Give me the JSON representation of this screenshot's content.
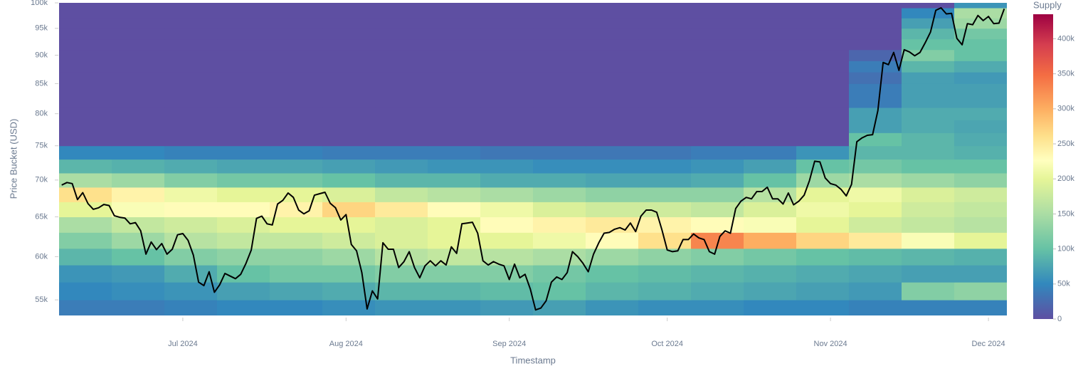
{
  "chart_data": {
    "type": "heatmap",
    "xlabel": "Timestamp",
    "ylabel": "Price Bucket (USD)",
    "colorbar_title": "Supply",
    "log_y": true,
    "xlim": [
      158.5,
      338.5
    ],
    "ylim": [
      53300,
      100000
    ],
    "zlim": [
      0,
      435000
    ],
    "xticks": [
      {
        "value": 182,
        "label": "Jul 2024"
      },
      {
        "value": 213,
        "label": "Aug 2024"
      },
      {
        "value": 244,
        "label": "Sep 2024"
      },
      {
        "value": 274,
        "label": "Oct 2024"
      },
      {
        "value": 305,
        "label": "Nov 2024"
      },
      {
        "value": 335,
        "label": "Dec 2024"
      }
    ],
    "yticks": [
      {
        "value": 55000,
        "label": "55k"
      },
      {
        "value": 60000,
        "label": "60k"
      },
      {
        "value": 65000,
        "label": "65k"
      },
      {
        "value": 70000,
        "label": "70k"
      },
      {
        "value": 75000,
        "label": "75k"
      },
      {
        "value": 80000,
        "label": "80k"
      },
      {
        "value": 85000,
        "label": "85k"
      },
      {
        "value": 90000,
        "label": "90k"
      },
      {
        "value": 95000,
        "label": "95k"
      },
      {
        "value": 100000,
        "label": "100k"
      }
    ],
    "zticks": [
      0,
      {
        "value": 50000,
        "label": "50k"
      },
      {
        "value": 100000,
        "label": "100k"
      },
      {
        "value": 150000,
        "label": "150k"
      },
      {
        "value": 200000,
        "label": "200k"
      },
      {
        "value": 250000,
        "label": "250k"
      },
      {
        "value": 300000,
        "label": "300k"
      },
      {
        "value": 350000,
        "label": "350k"
      },
      {
        "value": 400000,
        "label": "400k"
      }
    ],
    "colorscale": [
      [
        0,
        "#5e4fa2"
      ],
      [
        0.115,
        "#3288bd"
      ],
      [
        0.23,
        "#66c2a5"
      ],
      [
        0.345,
        "#abdda4"
      ],
      [
        0.46,
        "#e6f598"
      ],
      [
        0.52,
        "#ffffbf"
      ],
      [
        0.6,
        "#fee08b"
      ],
      [
        0.69,
        "#fdae61"
      ],
      [
        0.8,
        "#f46d43"
      ],
      [
        0.9,
        "#d53e4f"
      ],
      [
        1,
        "#9e0142"
      ]
    ],
    "xbins": [
      158.5,
      168.5,
      178.5,
      188.5,
      198.5,
      208.5,
      218.5,
      228.5,
      238.5,
      248.5,
      258.5,
      268.5,
      278.5,
      288.5,
      298.5,
      308.5,
      318.5,
      328.5,
      338.5
    ],
    "ybins": [
      53000,
      55000,
      57000,
      59000,
      61000,
      63000,
      65000,
      67000,
      69000,
      71000,
      73000,
      75000,
      77000,
      79000,
      81000,
      83000,
      85000,
      87000,
      89000,
      91000,
      93000,
      95000,
      97000,
      99000,
      101000
    ],
    "z": [
      [
        40000,
        40000,
        45000,
        50000,
        50000,
        55000,
        60000,
        60000,
        65000,
        70000,
        60000,
        55000,
        55000,
        50000,
        50000,
        45000,
        45000,
        45000
      ],
      [
        50000,
        55000,
        60000,
        70000,
        75000,
        80000,
        90000,
        90000,
        95000,
        100000,
        90000,
        85000,
        80000,
        75000,
        70000,
        65000,
        120000,
        130000
      ],
      [
        60000,
        65000,
        80000,
        100000,
        110000,
        110000,
        120000,
        120000,
        120000,
        110000,
        100000,
        95000,
        90000,
        85000,
        80000,
        75000,
        70000,
        70000
      ],
      [
        90000,
        100000,
        120000,
        130000,
        130000,
        140000,
        160000,
        170000,
        160000,
        150000,
        140000,
        130000,
        120000,
        110000,
        100000,
        95000,
        90000,
        85000
      ],
      [
        120000,
        140000,
        160000,
        170000,
        170000,
        180000,
        190000,
        200000,
        200000,
        210000,
        230000,
        260000,
        330000,
        300000,
        270000,
        250000,
        220000,
        200000
      ],
      [
        150000,
        170000,
        180000,
        190000,
        200000,
        200000,
        190000,
        200000,
        230000,
        240000,
        250000,
        240000,
        230000,
        220000,
        200000,
        180000,
        170000,
        160000
      ],
      [
        200000,
        220000,
        230000,
        230000,
        240000,
        270000,
        250000,
        230000,
        210000,
        190000,
        180000,
        180000,
        170000,
        190000,
        210000,
        200000,
        180000,
        170000
      ],
      [
        260000,
        240000,
        210000,
        200000,
        200000,
        190000,
        170000,
        160000,
        150000,
        140000,
        130000,
        130000,
        130000,
        160000,
        200000,
        210000,
        190000,
        180000
      ],
      [
        150000,
        140000,
        120000,
        110000,
        110000,
        100000,
        90000,
        90000,
        80000,
        80000,
        75000,
        75000,
        80000,
        100000,
        140000,
        150000,
        140000,
        130000
      ],
      [
        90000,
        85000,
        80000,
        75000,
        75000,
        70000,
        65000,
        60000,
        60000,
        55000,
        55000,
        55000,
        60000,
        70000,
        100000,
        110000,
        100000,
        100000
      ],
      [
        50000,
        50000,
        45000,
        45000,
        45000,
        40000,
        40000,
        40000,
        35000,
        35000,
        35000,
        35000,
        40000,
        40000,
        60000,
        90000,
        90000,
        85000
      ],
      [
        0,
        0,
        0,
        0,
        0,
        0,
        0,
        0,
        0,
        0,
        0,
        0,
        0,
        0,
        0,
        100000,
        90000,
        80000
      ],
      [
        0,
        0,
        0,
        0,
        0,
        0,
        0,
        0,
        0,
        0,
        0,
        0,
        0,
        0,
        0,
        70000,
        80000,
        75000
      ],
      [
        0,
        0,
        0,
        0,
        0,
        0,
        0,
        0,
        0,
        0,
        0,
        0,
        0,
        0,
        0,
        70000,
        80000,
        80000
      ],
      [
        0,
        0,
        0,
        0,
        0,
        0,
        0,
        0,
        0,
        0,
        0,
        0,
        0,
        0,
        0,
        40000,
        70000,
        70000
      ],
      [
        0,
        0,
        0,
        0,
        0,
        0,
        0,
        0,
        0,
        0,
        0,
        0,
        0,
        0,
        0,
        40000,
        70000,
        70000
      ],
      [
        0,
        0,
        0,
        0,
        0,
        0,
        0,
        0,
        0,
        0,
        0,
        0,
        0,
        0,
        0,
        30000,
        70000,
        65000
      ],
      [
        0,
        0,
        0,
        0,
        0,
        0,
        0,
        0,
        0,
        0,
        0,
        0,
        0,
        0,
        0,
        40000,
        90000,
        80000
      ],
      [
        0,
        0,
        0,
        0,
        0,
        0,
        0,
        0,
        0,
        0,
        0,
        0,
        0,
        0,
        0,
        20000,
        120000,
        100000
      ],
      [
        0,
        0,
        0,
        0,
        0,
        0,
        0,
        0,
        0,
        0,
        0,
        0,
        0,
        0,
        0,
        0,
        100000,
        100000
      ],
      [
        0,
        0,
        0,
        0,
        0,
        0,
        0,
        0,
        0,
        0,
        0,
        0,
        0,
        0,
        0,
        0,
        90000,
        110000
      ],
      [
        0,
        0,
        0,
        0,
        0,
        0,
        0,
        0,
        0,
        0,
        0,
        0,
        0,
        0,
        0,
        0,
        70000,
        140000
      ],
      [
        0,
        0,
        0,
        0,
        0,
        0,
        0,
        0,
        0,
        0,
        0,
        0,
        0,
        0,
        0,
        0,
        50000,
        150000
      ],
      [
        0,
        0,
        0,
        0,
        0,
        0,
        0,
        0,
        0,
        0,
        0,
        0,
        0,
        0,
        0,
        0,
        0,
        60000
      ]
    ],
    "line": {
      "color": "#000000",
      "x": [
        159,
        160,
        161,
        162,
        163,
        164,
        165,
        166,
        167,
        168,
        169,
        170,
        171,
        172,
        173,
        174,
        175,
        176,
        177,
        178,
        179,
        180,
        181,
        182,
        183,
        184,
        185,
        186,
        187,
        188,
        189,
        190,
        191,
        192,
        193,
        194,
        195,
        196,
        197,
        198,
        199,
        200,
        201,
        202,
        203,
        204,
        205,
        206,
        207,
        208,
        209,
        210,
        211,
        212,
        213,
        214,
        215,
        216,
        217,
        218,
        219,
        220,
        221,
        222,
        223,
        224,
        225,
        226,
        227,
        228,
        229,
        230,
        231,
        232,
        233,
        234,
        235,
        236,
        237,
        238,
        239,
        240,
        241,
        242,
        243,
        244,
        245,
        246,
        247,
        248,
        249,
        250,
        251,
        252,
        253,
        254,
        255,
        256,
        257,
        258,
        259,
        260,
        261,
        262,
        263,
        264,
        265,
        266,
        267,
        268,
        269,
        270,
        271,
        272,
        273,
        274,
        275,
        276,
        277,
        278,
        279,
        280,
        281,
        282,
        283,
        284,
        285,
        286,
        287,
        288,
        289,
        290,
        291,
        292,
        293,
        294,
        295,
        296,
        297,
        298,
        299,
        300,
        301,
        302,
        303,
        304,
        305,
        306,
        307,
        308,
        309,
        310,
        311,
        312,
        313,
        314,
        315,
        316,
        317,
        318,
        319,
        320,
        321,
        322,
        323,
        324,
        325,
        326,
        327,
        328,
        329,
        330,
        331,
        332,
        333,
        334,
        335,
        336,
        337,
        338
      ],
      "y": [
        69300,
        69650,
        69500,
        67300,
        68250,
        66750,
        66000,
        66200,
        66650,
        66500,
        65150,
        64950,
        64850,
        64100,
        64250,
        63200,
        60300,
        61800,
        60850,
        61600,
        60300,
        60900,
        62700,
        62850,
        62000,
        60200,
        57000,
        56600,
        58200,
        55850,
        56700,
        58000,
        57700,
        57400,
        57900,
        59200,
        60800,
        64800,
        65100,
        64100,
        63950,
        66700,
        67200,
        68200,
        67600,
        65900,
        65400,
        65800,
        67900,
        68100,
        68300,
        66800,
        66200,
        64600,
        65300,
        61500,
        60700,
        58100,
        54000,
        56000,
        55100,
        61700,
        60900,
        60900,
        58700,
        59400,
        60600,
        58700,
        57500,
        58900,
        59500,
        58900,
        59500,
        59000,
        61200,
        60400,
        64100,
        64200,
        64300,
        62900,
        59500,
        59000,
        59400,
        59100,
        58900,
        57300,
        59100,
        57500,
        57900,
        56200,
        53900,
        54100,
        54900,
        57000,
        57600,
        57300,
        58100,
        60600,
        60000,
        59200,
        58200,
        60300,
        61700,
        62900,
        63000,
        63400,
        63600,
        63300,
        64200,
        63100,
        65100,
        65900,
        65900,
        65600,
        63300,
        60800,
        60600,
        60700,
        62100,
        62100,
        62800,
        62300,
        62100,
        60600,
        60300,
        62500,
        63200,
        62900,
        66100,
        67100,
        67600,
        67400,
        68400,
        68400,
        69000,
        67400,
        67400,
        66700,
        68200,
        66600,
        67100,
        67900,
        69900,
        72700,
        72600,
        70300,
        69500,
        69300,
        68700,
        67800,
        69400,
        75600,
        76200,
        76600,
        76700,
        80500,
        88700,
        88300,
        90500,
        87300,
        91000,
        90600,
        89900,
        90500,
        92300,
        94300,
        98500,
        99000,
        97800,
        97900,
        93100,
        91900,
        95900,
        95700,
        97500,
        96500,
        97300,
        95900,
        96000,
        98800
      ]
    }
  }
}
